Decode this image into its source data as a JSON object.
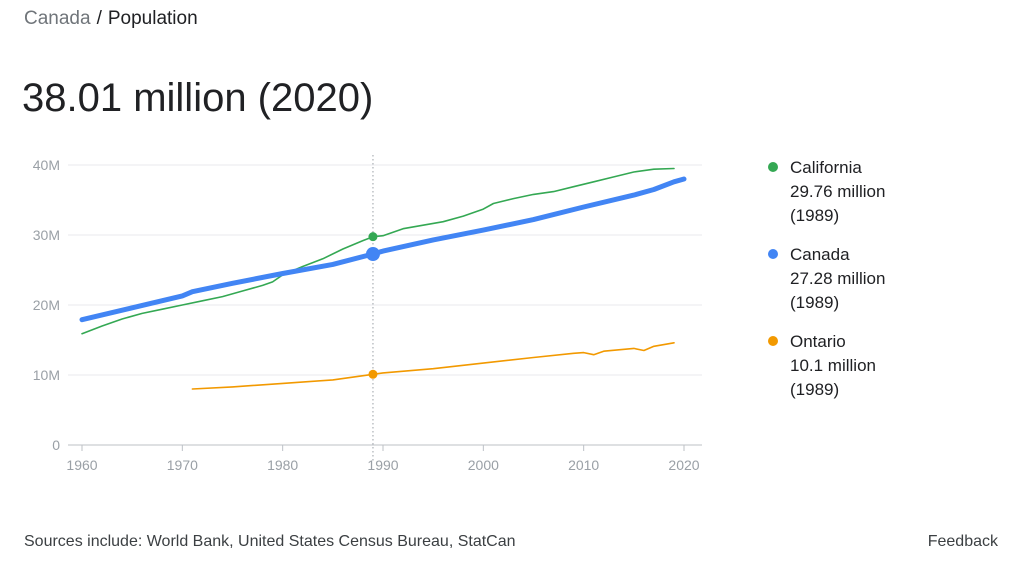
{
  "breadcrumb": {
    "parent": "Canada",
    "separator": "/",
    "current": "Population"
  },
  "headline": "38.01 million (2020)",
  "legend": [
    {
      "name": "California",
      "value": "29.76 million",
      "year": "(1989)",
      "color": "#34a853"
    },
    {
      "name": "Canada",
      "value": "27.28 million",
      "year": "(1989)",
      "color": "#4285f4"
    },
    {
      "name": "Ontario",
      "value": "10.1 million",
      "year": "(1989)",
      "color": "#f29900"
    }
  ],
  "footer": {
    "sources": "Sources include: World Bank, United States Census Bureau, StatCan",
    "feedback": "Feedback"
  },
  "chart_data": {
    "type": "line",
    "xlim": [
      1960,
      2020
    ],
    "ylim": [
      0,
      40
    ],
    "x_ticks": [
      "1960",
      "1970",
      "1980",
      "1990",
      "2000",
      "2010",
      "2020"
    ],
    "y_ticks": [
      "0",
      "10M",
      "20M",
      "30M",
      "40M"
    ],
    "grid": true,
    "legend_position": "right",
    "hover_year": 1989,
    "series": [
      {
        "name": "California",
        "color": "#34a853",
        "x": [
          1960,
          1962,
          1964,
          1966,
          1968,
          1970,
          1972,
          1974,
          1976,
          1978,
          1979,
          1980,
          1982,
          1984,
          1986,
          1988,
          1989,
          1990,
          1992,
          1994,
          1996,
          1998,
          2000,
          2001,
          2003,
          2005,
          2007,
          2009,
          2011,
          2013,
          2015,
          2017,
          2019
        ],
        "y": [
          15.9,
          17.0,
          18.0,
          18.8,
          19.4,
          20.0,
          20.6,
          21.2,
          22.0,
          22.8,
          23.3,
          24.3,
          25.5,
          26.6,
          28.0,
          29.2,
          29.76,
          29.9,
          30.9,
          31.4,
          31.9,
          32.7,
          33.7,
          34.5,
          35.2,
          35.8,
          36.2,
          36.9,
          37.6,
          38.3,
          39.0,
          39.4,
          39.5
        ]
      },
      {
        "name": "Canada",
        "color": "#4285f4",
        "x": [
          1960,
          1965,
          1970,
          1971,
          1975,
          1980,
          1985,
          1989,
          1990,
          1995,
          2000,
          2005,
          2010,
          2015,
          2017,
          2019,
          2020
        ],
        "y": [
          17.9,
          19.6,
          21.3,
          21.9,
          23.1,
          24.5,
          25.8,
          27.28,
          27.7,
          29.3,
          30.7,
          32.2,
          34.0,
          35.7,
          36.5,
          37.6,
          38.0
        ]
      },
      {
        "name": "Ontario",
        "color": "#f29900",
        "x": [
          1971,
          1975,
          1980,
          1985,
          1989,
          1990,
          1995,
          2000,
          2005,
          2009,
          2010,
          2011,
          2012,
          2015,
          2016,
          2017,
          2019
        ],
        "y": [
          8.0,
          8.3,
          8.8,
          9.3,
          10.1,
          10.3,
          10.9,
          11.7,
          12.5,
          13.1,
          13.2,
          12.9,
          13.4,
          13.8,
          13.5,
          14.1,
          14.6
        ]
      }
    ]
  }
}
